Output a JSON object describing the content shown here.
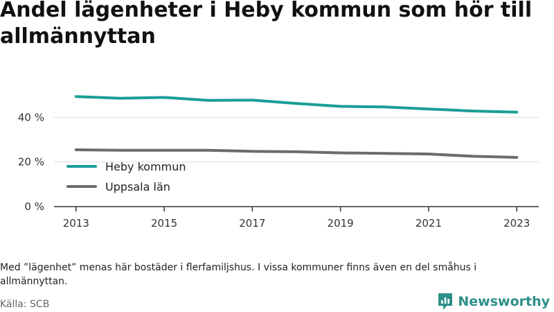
{
  "title": "Andel lägenheter i Heby kommun som hör till allmännyttan",
  "note": "Med ”lägenhet” menas här bostäder i flerfamiljshus. I vissa kommuner finns även en del småhus i allmännyttan.",
  "source": "Källa: SCB",
  "brand": {
    "name": "Newsworthy",
    "color": "#2d8f88",
    "icon": "newsworthy-logo-icon"
  },
  "chart_data": {
    "type": "line",
    "title": "Andel lägenheter i Heby kommun som hör till allmännyttan",
    "xlabel": "",
    "ylabel": "",
    "x": [
      2013,
      2014,
      2015,
      2016,
      2017,
      2018,
      2019,
      2020,
      2021,
      2022,
      2023
    ],
    "xticks": [
      2013,
      2015,
      2017,
      2019,
      2021,
      2023
    ],
    "xtick_labels": [
      "2013",
      "2015",
      "2017",
      "2019",
      "2021",
      "2023"
    ],
    "yticks": [
      0,
      20,
      40
    ],
    "ytick_labels": [
      "0 %",
      "20 %",
      "40 %"
    ],
    "ylim": [
      0,
      56
    ],
    "xlim": [
      2012.5,
      2023.5
    ],
    "grid": true,
    "legend_position": "bottom-left",
    "series": [
      {
        "name": "Heby kommun",
        "color": "#1a9e96",
        "values": [
          49.4,
          48.6,
          49.0,
          47.7,
          47.8,
          46.3,
          45.0,
          44.7,
          43.8,
          42.9,
          42.4
        ]
      },
      {
        "name": "Uppsala län",
        "color": "#6b6b70",
        "values": [
          25.5,
          25.3,
          25.3,
          25.3,
          24.8,
          24.6,
          24.1,
          23.9,
          23.6,
          22.6,
          22.1
        ]
      }
    ]
  }
}
